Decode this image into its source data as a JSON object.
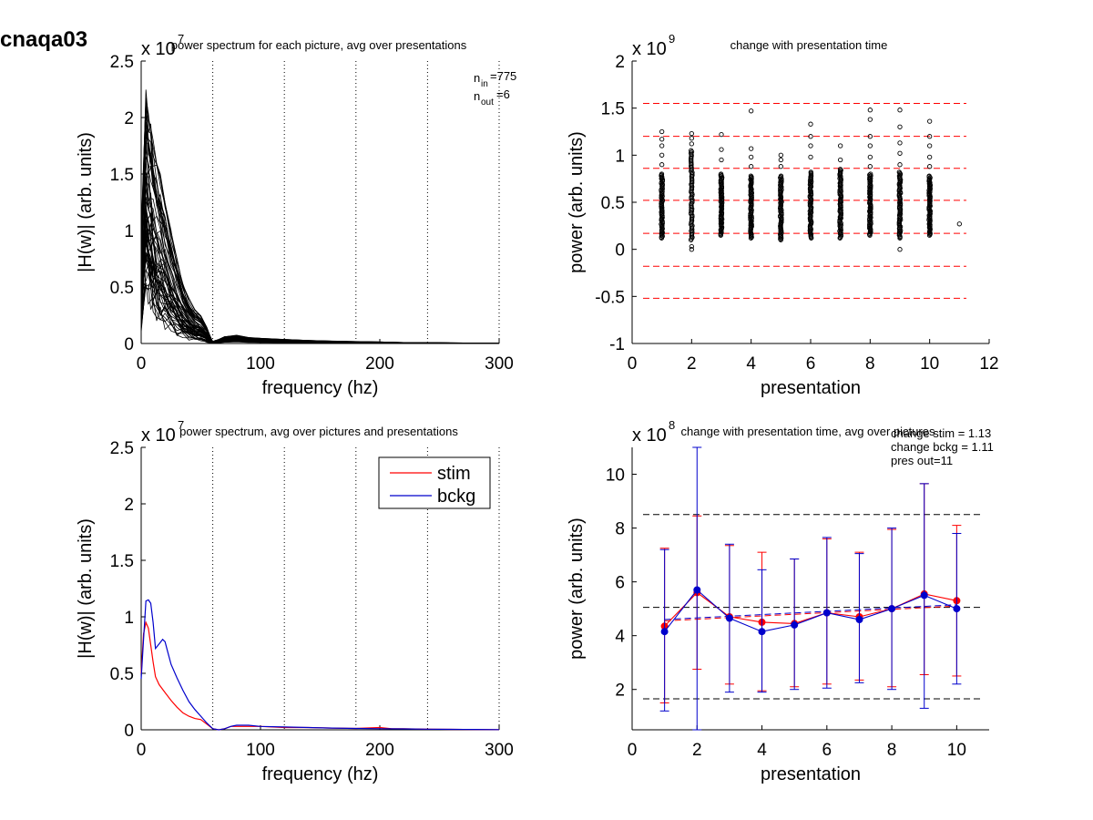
{
  "figure_title": "cnaqa03",
  "chart_data": [
    {
      "id": "p1",
      "type": "line",
      "title": "power spectrum for each picture, avg over presentations",
      "xlabel": "frequency (hz)",
      "ylabel": "|H(w)| (arb. units)",
      "exponent_label": "x 10",
      "exponent_power": "7",
      "xlim": [
        0,
        300
      ],
      "ylim": [
        0,
        2.5
      ],
      "xticks": [
        0,
        100,
        200,
        300
      ],
      "xtick_labels": [
        "0",
        "100",
        "200",
        "300"
      ],
      "yticks": [
        0,
        0.5,
        1,
        1.5,
        2,
        2.5
      ],
      "ytick_labels": [
        "0",
        "0.5",
        "1",
        "1.5",
        "2",
        "2.5"
      ],
      "vlines": [
        60,
        120,
        180,
        240,
        300
      ],
      "annotation": {
        "n_in": "n",
        "n_in_sub": "in",
        "n_in_val": "=775",
        "n_out": "n",
        "n_out_sub": "out",
        "n_out_val": "=6"
      },
      "envelope": {
        "x": [
          0,
          2,
          4,
          6,
          8,
          10,
          13,
          16,
          20,
          25,
          30,
          35,
          40,
          45,
          50,
          55,
          58,
          60,
          62,
          65,
          70,
          80,
          90,
          100,
          120,
          140,
          160,
          180,
          200,
          220,
          240,
          260,
          280,
          300
        ],
        "upper": [
          1.0,
          1.6,
          2.3,
          2.1,
          2.0,
          1.8,
          1.6,
          1.5,
          1.3,
          1.0,
          0.75,
          0.55,
          0.4,
          0.3,
          0.25,
          0.15,
          0.06,
          0.02,
          0.03,
          0.04,
          0.07,
          0.08,
          0.06,
          0.05,
          0.04,
          0.03,
          0.025,
          0.02,
          0.015,
          0.01,
          0.008,
          0.006,
          0.004,
          0.003
        ],
        "lower": [
          0.1,
          0.3,
          0.4,
          0.35,
          0.3,
          0.25,
          0.2,
          0.15,
          0.12,
          0.09,
          0.06,
          0.04,
          0.03,
          0.02,
          0.015,
          0.01,
          0.005,
          0.0,
          0.0,
          0.005,
          0.01,
          0.01,
          0.01,
          0.008,
          0.006,
          0.004,
          0.003,
          0.002,
          0.002,
          0.001,
          0.001,
          0.001,
          0.0,
          0.0
        ]
      },
      "n_traces": 60
    },
    {
      "id": "p2",
      "type": "scatter",
      "title": "change with presentation time",
      "xlabel": "presentation",
      "ylabel": "power (arb. units)",
      "exponent_label": "x 10",
      "exponent_power": "9",
      "xlim": [
        0,
        12
      ],
      "ylim": [
        -1,
        2
      ],
      "xticks": [
        0,
        2,
        4,
        6,
        8,
        10,
        12
      ],
      "xtick_labels": [
        "0",
        "2",
        "4",
        "6",
        "8",
        "10",
        "12"
      ],
      "yticks": [
        -1,
        -0.5,
        0,
        0.5,
        1,
        1.5,
        2
      ],
      "ytick_labels": [
        "-1",
        "-0.5",
        "0",
        "0.5",
        "1",
        "1.5",
        "2"
      ],
      "hlines": [
        1.55,
        1.2,
        0.86,
        0.52,
        0.17,
        -0.18,
        -0.52
      ],
      "columns": [
        {
          "x": 1,
          "low": 0.12,
          "high": 0.8,
          "outliers": [
            0.9,
            1.0,
            1.1,
            1.17,
            1.25
          ]
        },
        {
          "x": 2,
          "low": 0.1,
          "high": 1.05,
          "outliers": [
            0.0,
            0.03,
            1.12,
            1.18,
            1.23
          ]
        },
        {
          "x": 3,
          "low": 0.15,
          "high": 0.8,
          "outliers": [
            0.95,
            1.06,
            1.22
          ]
        },
        {
          "x": 4,
          "low": 0.12,
          "high": 0.78,
          "outliers": [
            0.88,
            0.98,
            1.07,
            1.47
          ]
        },
        {
          "x": 5,
          "low": 0.1,
          "high": 0.78,
          "outliers": [
            0.88,
            0.95,
            1.0
          ]
        },
        {
          "x": 6,
          "low": 0.12,
          "high": 0.82,
          "outliers": [
            0.98,
            1.1,
            1.2,
            1.33
          ]
        },
        {
          "x": 7,
          "low": 0.12,
          "high": 0.85,
          "outliers": [
            0.95,
            1.1
          ]
        },
        {
          "x": 8,
          "low": 0.15,
          "high": 0.8,
          "outliers": [
            0.88,
            0.98,
            1.1,
            1.2,
            1.38,
            1.48
          ]
        },
        {
          "x": 9,
          "low": 0.12,
          "high": 0.82,
          "outliers": [
            0.0,
            0.9,
            1.02,
            1.13,
            1.3,
            1.48
          ]
        },
        {
          "x": 10,
          "low": 0.15,
          "high": 0.78,
          "outliers": [
            0.88,
            0.98,
            1.1,
            1.2,
            1.36
          ]
        },
        {
          "x": 11,
          "low": null,
          "high": null,
          "outliers": [
            0.27
          ]
        }
      ]
    },
    {
      "id": "p3",
      "type": "line",
      "title": "power spectrum, avg over pictures and presentations",
      "xlabel": "frequency (hz)",
      "ylabel": "|H(w)| (arb. units)",
      "exponent_label": "x 10",
      "exponent_power": "7",
      "xlim": [
        0,
        300
      ],
      "ylim": [
        0,
        2.5
      ],
      "xticks": [
        0,
        100,
        200,
        300
      ],
      "xtick_labels": [
        "0",
        "100",
        "200",
        "300"
      ],
      "yticks": [
        0,
        0.5,
        1,
        1.5,
        2,
        2.5
      ],
      "ytick_labels": [
        "0",
        "0.5",
        "1",
        "1.5",
        "2",
        "2.5"
      ],
      "vlines": [
        60,
        120,
        180,
        240,
        300
      ],
      "legend": [
        {
          "name": "stim",
          "color": "#ff0000"
        },
        {
          "name": "bckg",
          "color": "#0000cc"
        }
      ],
      "series": [
        {
          "name": "stim",
          "color": "#ff0000",
          "x": [
            0,
            2,
            4,
            6,
            8,
            10,
            12,
            15,
            20,
            25,
            30,
            35,
            40,
            45,
            50,
            55,
            60,
            65,
            70,
            75,
            80,
            90,
            100,
            120,
            140,
            160,
            180,
            200,
            210,
            220,
            240,
            260,
            280,
            300
          ],
          "y": [
            0.5,
            0.85,
            0.95,
            0.9,
            0.75,
            0.6,
            0.47,
            0.4,
            0.33,
            0.26,
            0.2,
            0.15,
            0.12,
            0.1,
            0.09,
            0.05,
            0.01,
            0.0,
            0.01,
            0.03,
            0.03,
            0.03,
            0.03,
            0.02,
            0.02,
            0.015,
            0.012,
            0.02,
            0.01,
            0.01,
            0.006,
            0.004,
            0.003,
            0.002
          ]
        },
        {
          "name": "bckg",
          "color": "#0000cc",
          "x": [
            0,
            2,
            4,
            6,
            8,
            10,
            12,
            15,
            18,
            20,
            22,
            25,
            30,
            35,
            40,
            45,
            50,
            55,
            60,
            65,
            70,
            75,
            80,
            90,
            100,
            120,
            140,
            160,
            180,
            200,
            220,
            240,
            260,
            280,
            300
          ],
          "y": [
            0.45,
            0.8,
            1.14,
            1.15,
            1.12,
            0.95,
            0.72,
            0.76,
            0.8,
            0.78,
            0.7,
            0.58,
            0.46,
            0.35,
            0.25,
            0.18,
            0.12,
            0.06,
            0.01,
            0.0,
            0.01,
            0.03,
            0.04,
            0.04,
            0.03,
            0.025,
            0.02,
            0.015,
            0.012,
            0.01,
            0.008,
            0.006,
            0.004,
            0.003,
            0.002
          ]
        }
      ]
    },
    {
      "id": "p4",
      "type": "line",
      "title": "change with presentation time, avg over pictures",
      "xlabel": "presentation",
      "ylabel": "power (arb. units)",
      "exponent_label": "x 10",
      "exponent_power": "8",
      "xlim": [
        0,
        11
      ],
      "ylim": [
        0.5,
        11
      ],
      "xticks": [
        0,
        2,
        4,
        6,
        8,
        10
      ],
      "xtick_labels": [
        "0",
        "2",
        "4",
        "6",
        "8",
        "10"
      ],
      "yticks": [
        2,
        4,
        6,
        8,
        10
      ],
      "ytick_labels": [
        "2",
        "4",
        "6",
        "8",
        "10"
      ],
      "hlines": [
        8.5,
        5.05,
        1.65
      ],
      "annotations": [
        "change stim = 1.13",
        "change bckg = 1.11",
        "pres out=11"
      ],
      "x": [
        1,
        2,
        3,
        4,
        5,
        6,
        7,
        8,
        9,
        10
      ],
      "series": [
        {
          "name": "stim",
          "color": "#ff0000",
          "values": [
            4.35,
            5.6,
            4.7,
            4.5,
            4.45,
            4.85,
            4.7,
            5.0,
            5.55,
            5.3
          ],
          "err_low": [
            1.5,
            2.75,
            2.2,
            1.95,
            2.1,
            2.2,
            2.35,
            2.1,
            2.55,
            2.5
          ],
          "err_high": [
            7.25,
            8.45,
            7.35,
            7.1,
            6.85,
            7.6,
            7.1,
            7.95,
            9.65,
            8.1
          ]
        },
        {
          "name": "bckg",
          "color": "#0000cc",
          "values": [
            4.15,
            5.7,
            4.65,
            4.15,
            4.4,
            4.85,
            4.6,
            5.0,
            5.5,
            5.0
          ],
          "err_low": [
            1.2,
            0.5,
            1.9,
            1.9,
            2.0,
            2.05,
            2.25,
            2.0,
            1.3,
            2.2
          ],
          "err_high": [
            7.2,
            11.0,
            7.4,
            6.45,
            6.85,
            7.65,
            7.05,
            8.0,
            9.65,
            7.8
          ]
        }
      ],
      "trend_stim": [
        4.55,
        5.1
      ],
      "trend_bckg": [
        4.6,
        5.15
      ]
    }
  ]
}
